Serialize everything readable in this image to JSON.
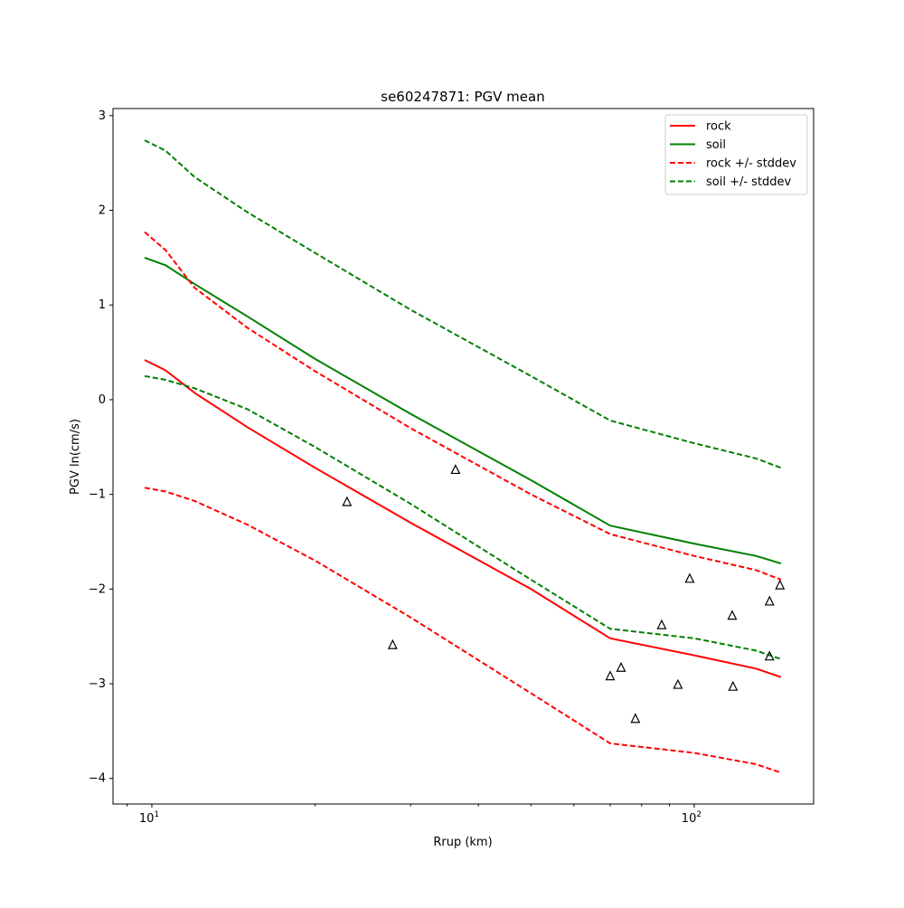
{
  "chart_data": {
    "type": "line",
    "title": "se60247871: PGV mean",
    "xlabel": "Rrup (km)",
    "ylabel": "PGV ln(cm/s)",
    "xscale": "log",
    "xlim": [
      8.48,
      166
    ],
    "ylim": [
      -4.27,
      3.075
    ],
    "xticks": [
      {
        "value": 10,
        "base": "10",
        "exp": "1"
      },
      {
        "value": 100,
        "base": "10",
        "exp": "2"
      }
    ],
    "yticks": [
      {
        "value": 3,
        "label": "3"
      },
      {
        "value": 2,
        "label": "2"
      },
      {
        "value": 1,
        "label": "1"
      },
      {
        "value": 0,
        "label": "0"
      },
      {
        "value": -1,
        "label": "−1"
      },
      {
        "value": -2,
        "label": "−2"
      },
      {
        "value": -3,
        "label": "−3"
      },
      {
        "value": -4,
        "label": "−4"
      }
    ],
    "grid": false,
    "legend_position": "top-right",
    "x": [
      9.7,
      10.6,
      12,
      15,
      20,
      30,
      50,
      70,
      100,
      130,
      144.5
    ],
    "series": [
      {
        "name": "rock",
        "color": "#ff0000",
        "style": "solid",
        "values": [
          0.42,
          0.31,
          0.07,
          -0.29,
          -0.72,
          -1.3,
          -2.0,
          -2.52,
          -2.7,
          -2.84,
          -2.93
        ]
      },
      {
        "name": "soil",
        "color": "#008000",
        "style": "solid",
        "values": [
          1.5,
          1.42,
          1.22,
          0.88,
          0.43,
          -0.15,
          -0.85,
          -1.33,
          -1.52,
          -1.65,
          -1.73
        ]
      },
      {
        "name": "rock +/- stddev",
        "color": "#ff0000",
        "style": "dashed",
        "values": [
          1.77,
          1.58,
          1.18,
          0.76,
          0.3,
          -0.3,
          -1.0,
          -1.42,
          -1.65,
          -1.8,
          -1.9
        ]
      },
      {
        "name": "rock +/- stddev (lower)",
        "legend": false,
        "color": "#ff0000",
        "style": "dashed",
        "values": [
          -0.93,
          -0.97,
          -1.07,
          -1.32,
          -1.7,
          -2.3,
          -3.1,
          -3.63,
          -3.73,
          -3.85,
          -3.94
        ]
      },
      {
        "name": "soil +/- stddev",
        "color": "#008000",
        "style": "dashed",
        "values": [
          2.74,
          2.63,
          2.35,
          1.98,
          1.55,
          0.95,
          0.25,
          -0.22,
          -0.46,
          -0.62,
          -0.72
        ]
      },
      {
        "name": "soil +/- stddev (lower)",
        "legend": false,
        "color": "#008000",
        "style": "dashed",
        "values": [
          0.25,
          0.21,
          0.12,
          -0.1,
          -0.5,
          -1.1,
          -1.9,
          -2.42,
          -2.52,
          -2.65,
          -2.74
        ]
      }
    ],
    "observations": {
      "marker": "triangle",
      "color": "#000000",
      "points": [
        [
          22.9,
          -1.08
        ],
        [
          27.8,
          -2.59
        ],
        [
          36.3,
          -0.74
        ],
        [
          70,
          -2.92
        ],
        [
          73.3,
          -2.83
        ],
        [
          77.9,
          -3.37
        ],
        [
          87.1,
          -2.38
        ],
        [
          93.3,
          -3.01
        ],
        [
          98.1,
          -1.89
        ],
        [
          117.5,
          -2.28
        ],
        [
          117.9,
          -3.03
        ],
        [
          137.7,
          -2.13
        ],
        [
          137.7,
          -2.71
        ],
        [
          143.9,
          -1.96
        ]
      ]
    },
    "legend": [
      "rock",
      "soil",
      "rock +/- stddev",
      "soil +/- stddev"
    ]
  }
}
